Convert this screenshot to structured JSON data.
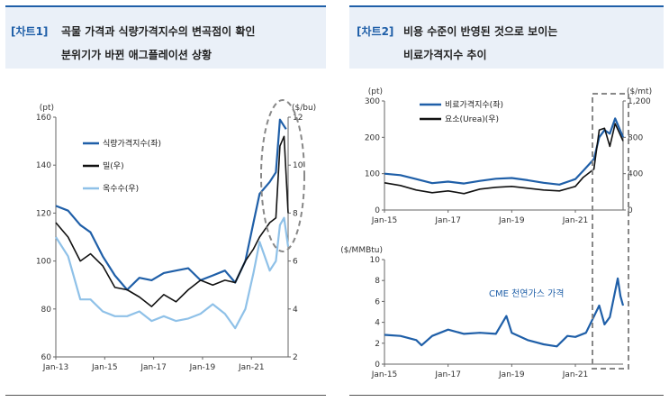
{
  "left_panel": {
    "tag": "[차트1]",
    "title_line1": "곡물 가격과 식량가격지수의 변곡점이 확인",
    "title_line2": "분위기가 바뀐 애그플레이션 상황"
  },
  "right_panel": {
    "tag": "[차트2]",
    "title_line1": "비용 수준이 반영된 것으로 보이는",
    "title_line2": "비료가격지수 추이"
  },
  "chart_data": [
    {
      "type": "line",
      "unit_left": "(pt)",
      "unit_right": "($/bu)",
      "x_ticks": [
        "Jan-13",
        "Jan-15",
        "Jan-17",
        "Jan-19",
        "Jan-21"
      ],
      "xlim": [
        "2013-01",
        "2022-07"
      ],
      "ylim_left": [
        60,
        160
      ],
      "yticks_left": [
        "60",
        "80",
        "100",
        "120",
        "140",
        "160"
      ],
      "ylim_right": [
        2,
        12
      ],
      "yticks_right": [
        "2",
        "4",
        "6",
        "8",
        "10",
        "12"
      ],
      "legend_position": "top-left",
      "grid": false,
      "series": [
        {
          "name": "식량가격지수(좌)",
          "axis": "left",
          "color": "#1f5fa8",
          "x": [
            "2013-01",
            "2013-07",
            "2014-01",
            "2014-06",
            "2014-12",
            "2015-06",
            "2015-12",
            "2016-06",
            "2016-12",
            "2017-06",
            "2017-12",
            "2018-06",
            "2018-12",
            "2019-06",
            "2019-12",
            "2020-05",
            "2020-10",
            "2021-02",
            "2021-05",
            "2021-10",
            "2022-01",
            "2022-03",
            "2022-06"
          ],
          "values": [
            123,
            121,
            115,
            112,
            102,
            94,
            88,
            93,
            92,
            95,
            96,
            97,
            92,
            94,
            96,
            91,
            100,
            116,
            128,
            133,
            137,
            159,
            155
          ]
        },
        {
          "name": "밀(우)",
          "axis": "right",
          "color": "#111111",
          "x": [
            "2013-01",
            "2013-07",
            "2014-01",
            "2014-06",
            "2014-12",
            "2015-06",
            "2015-12",
            "2016-06",
            "2016-12",
            "2017-06",
            "2017-12",
            "2018-06",
            "2018-12",
            "2019-06",
            "2019-12",
            "2020-05",
            "2020-10",
            "2021-02",
            "2021-05",
            "2021-10",
            "2022-01",
            "2022-03",
            "2022-05",
            "2022-07"
          ],
          "values": [
            7.6,
            7.0,
            6.0,
            6.3,
            5.8,
            4.9,
            4.8,
            4.5,
            4.1,
            4.6,
            4.3,
            4.8,
            5.2,
            5.0,
            5.2,
            5.1,
            6.0,
            6.5,
            7.0,
            7.6,
            7.8,
            10.8,
            11.2,
            8.0
          ]
        },
        {
          "name": "옥수수(우)",
          "axis": "right",
          "color": "#8fc1e8",
          "x": [
            "2013-01",
            "2013-07",
            "2014-01",
            "2014-06",
            "2014-12",
            "2015-06",
            "2015-12",
            "2016-06",
            "2016-12",
            "2017-06",
            "2017-12",
            "2018-06",
            "2018-12",
            "2019-06",
            "2019-12",
            "2020-05",
            "2020-10",
            "2021-02",
            "2021-05",
            "2021-10",
            "2022-01",
            "2022-03",
            "2022-05",
            "2022-07"
          ],
          "values": [
            7.0,
            6.2,
            4.4,
            4.4,
            3.9,
            3.7,
            3.7,
            3.9,
            3.5,
            3.7,
            3.5,
            3.6,
            3.8,
            4.2,
            3.8,
            3.2,
            4.0,
            5.5,
            6.8,
            5.6,
            6.0,
            7.5,
            7.8,
            6.6
          ]
        }
      ]
    },
    {
      "type": "line",
      "unit_left": "(pt)",
      "unit_right": "($/mt)",
      "x_ticks": [
        "Jan-15",
        "Jan-17",
        "Jan-19",
        "Jan-21"
      ],
      "xlim": [
        "2015-01",
        "2022-07"
      ],
      "ylim_left": [
        0,
        300
      ],
      "yticks_left": [
        "0",
        "100",
        "200",
        "300"
      ],
      "ylim_right": [
        0,
        1200
      ],
      "yticks_right": [
        "0",
        "400",
        "800",
        "1,200"
      ],
      "legend_position": "top-left",
      "grid": false,
      "series": [
        {
          "name": "비료가격지수(좌)",
          "axis": "left",
          "color": "#1f5fa8",
          "x": [
            "2015-01",
            "2015-07",
            "2016-01",
            "2016-07",
            "2017-01",
            "2017-07",
            "2018-01",
            "2018-07",
            "2019-01",
            "2019-07",
            "2020-01",
            "2020-07",
            "2021-01",
            "2021-04",
            "2021-08",
            "2021-10",
            "2021-12",
            "2022-02",
            "2022-04",
            "2022-07"
          ],
          "values": [
            100,
            96,
            85,
            74,
            78,
            73,
            80,
            86,
            88,
            82,
            75,
            70,
            85,
            108,
            140,
            200,
            220,
            210,
            252,
            200
          ]
        },
        {
          "name": "요소(Urea)(우)",
          "axis": "right",
          "color": "#111111",
          "x": [
            "2015-01",
            "2015-07",
            "2016-01",
            "2016-07",
            "2017-01",
            "2017-07",
            "2018-01",
            "2018-07",
            "2019-01",
            "2019-07",
            "2020-01",
            "2020-07",
            "2021-01",
            "2021-04",
            "2021-08",
            "2021-10",
            "2021-12",
            "2022-02",
            "2022-04",
            "2022-07"
          ],
          "values": [
            300,
            270,
            220,
            190,
            210,
            180,
            230,
            250,
            260,
            240,
            220,
            210,
            260,
            360,
            450,
            880,
            900,
            700,
            950,
            760
          ]
        }
      ]
    },
    {
      "type": "line",
      "unit_left": "($/MMBtu)",
      "x_ticks": [
        "Jan-15",
        "Jan-17",
        "Jan-19",
        "Jan-21"
      ],
      "xlim": [
        "2015-01",
        "2022-07"
      ],
      "ylim_left": [
        0,
        10
      ],
      "yticks_left": [
        "0",
        "2",
        "4",
        "6",
        "8",
        "10"
      ],
      "grid": false,
      "annotation": "CME 천연가스 가격",
      "series": [
        {
          "name": "CME 천연가스 가격",
          "axis": "left",
          "color": "#1f5fa8",
          "x": [
            "2015-01",
            "2015-07",
            "2016-01",
            "2016-03",
            "2016-07",
            "2017-01",
            "2017-07",
            "2018-01",
            "2018-07",
            "2018-11",
            "2019-01",
            "2019-07",
            "2020-01",
            "2020-06",
            "2020-10",
            "2021-01",
            "2021-05",
            "2021-10",
            "2021-12",
            "2022-02",
            "2022-05",
            "2022-06",
            "2022-07"
          ],
          "values": [
            2.8,
            2.7,
            2.3,
            1.8,
            2.7,
            3.3,
            2.9,
            3.0,
            2.9,
            4.6,
            3.0,
            2.3,
            1.9,
            1.7,
            2.7,
            2.6,
            3.0,
            5.6,
            3.8,
            4.5,
            8.2,
            6.5,
            5.6
          ]
        }
      ]
    }
  ]
}
